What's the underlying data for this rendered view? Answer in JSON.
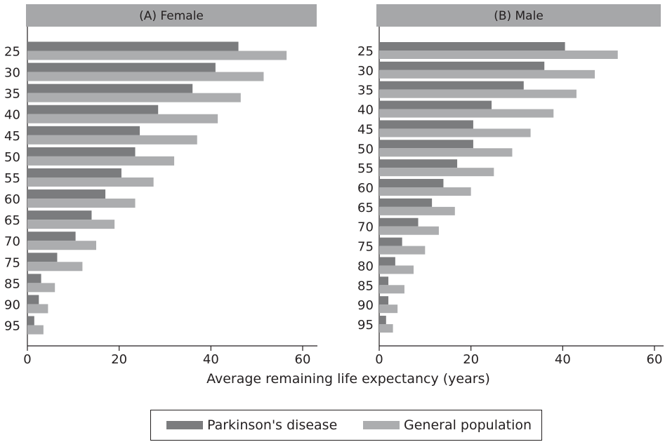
{
  "figure": {
    "xlabel": "Average remaining life expectancy (years)",
    "colors": {
      "panel_header": "#a6a7a9",
      "parkinsons": "#7b7c7e",
      "general": "#acadaf",
      "axis": "#231f20"
    }
  },
  "legend": {
    "items": [
      {
        "label": "Parkinson's disease",
        "color": "#7b7c7e"
      },
      {
        "label": "General population",
        "color": "#acadaf"
      }
    ]
  },
  "chart_data": [
    {
      "type": "bar",
      "orientation": "horizontal",
      "title": "(A) Female",
      "xlabel": "Average remaining life expectancy (years)",
      "xlim": [
        0,
        63
      ],
      "xticks": [
        0,
        20,
        40,
        60
      ],
      "grid": false,
      "categories": [
        "25",
        "30",
        "35",
        "40",
        "45",
        "50",
        "55",
        "60",
        "65",
        "70",
        "75",
        "85",
        "90",
        "95"
      ],
      "series": [
        {
          "name": "Parkinson's disease",
          "values": [
            46,
            41,
            36,
            28.5,
            24.5,
            23.5,
            20.5,
            17,
            14,
            10.5,
            6.5,
            3,
            2.5,
            1.5
          ]
        },
        {
          "name": "General population",
          "values": [
            56.5,
            51.5,
            46.5,
            41.5,
            37,
            32,
            27.5,
            23.5,
            19,
            15,
            12,
            6,
            4.5,
            3.5
          ]
        }
      ]
    },
    {
      "type": "bar",
      "orientation": "horizontal",
      "title": "(B) Male",
      "xlabel": "Average remaining life expectancy (years)",
      "xlim": [
        0,
        63
      ],
      "xticks": [
        0,
        20,
        40,
        60
      ],
      "grid": false,
      "categories": [
        "25",
        "30",
        "35",
        "40",
        "45",
        "50",
        "55",
        "60",
        "65",
        "70",
        "75",
        "80",
        "85",
        "90",
        "95"
      ],
      "series": [
        {
          "name": "Parkinson's disease",
          "values": [
            40.5,
            36,
            31.5,
            24.5,
            20.5,
            20.5,
            17,
            14,
            11.5,
            8.5,
            5,
            3.5,
            2,
            2,
            1.5
          ]
        },
        {
          "name": "General population",
          "values": [
            52,
            47,
            43,
            38,
            33,
            29,
            25,
            20,
            16.5,
            13,
            10,
            7.5,
            5.5,
            4,
            3
          ]
        }
      ]
    }
  ]
}
